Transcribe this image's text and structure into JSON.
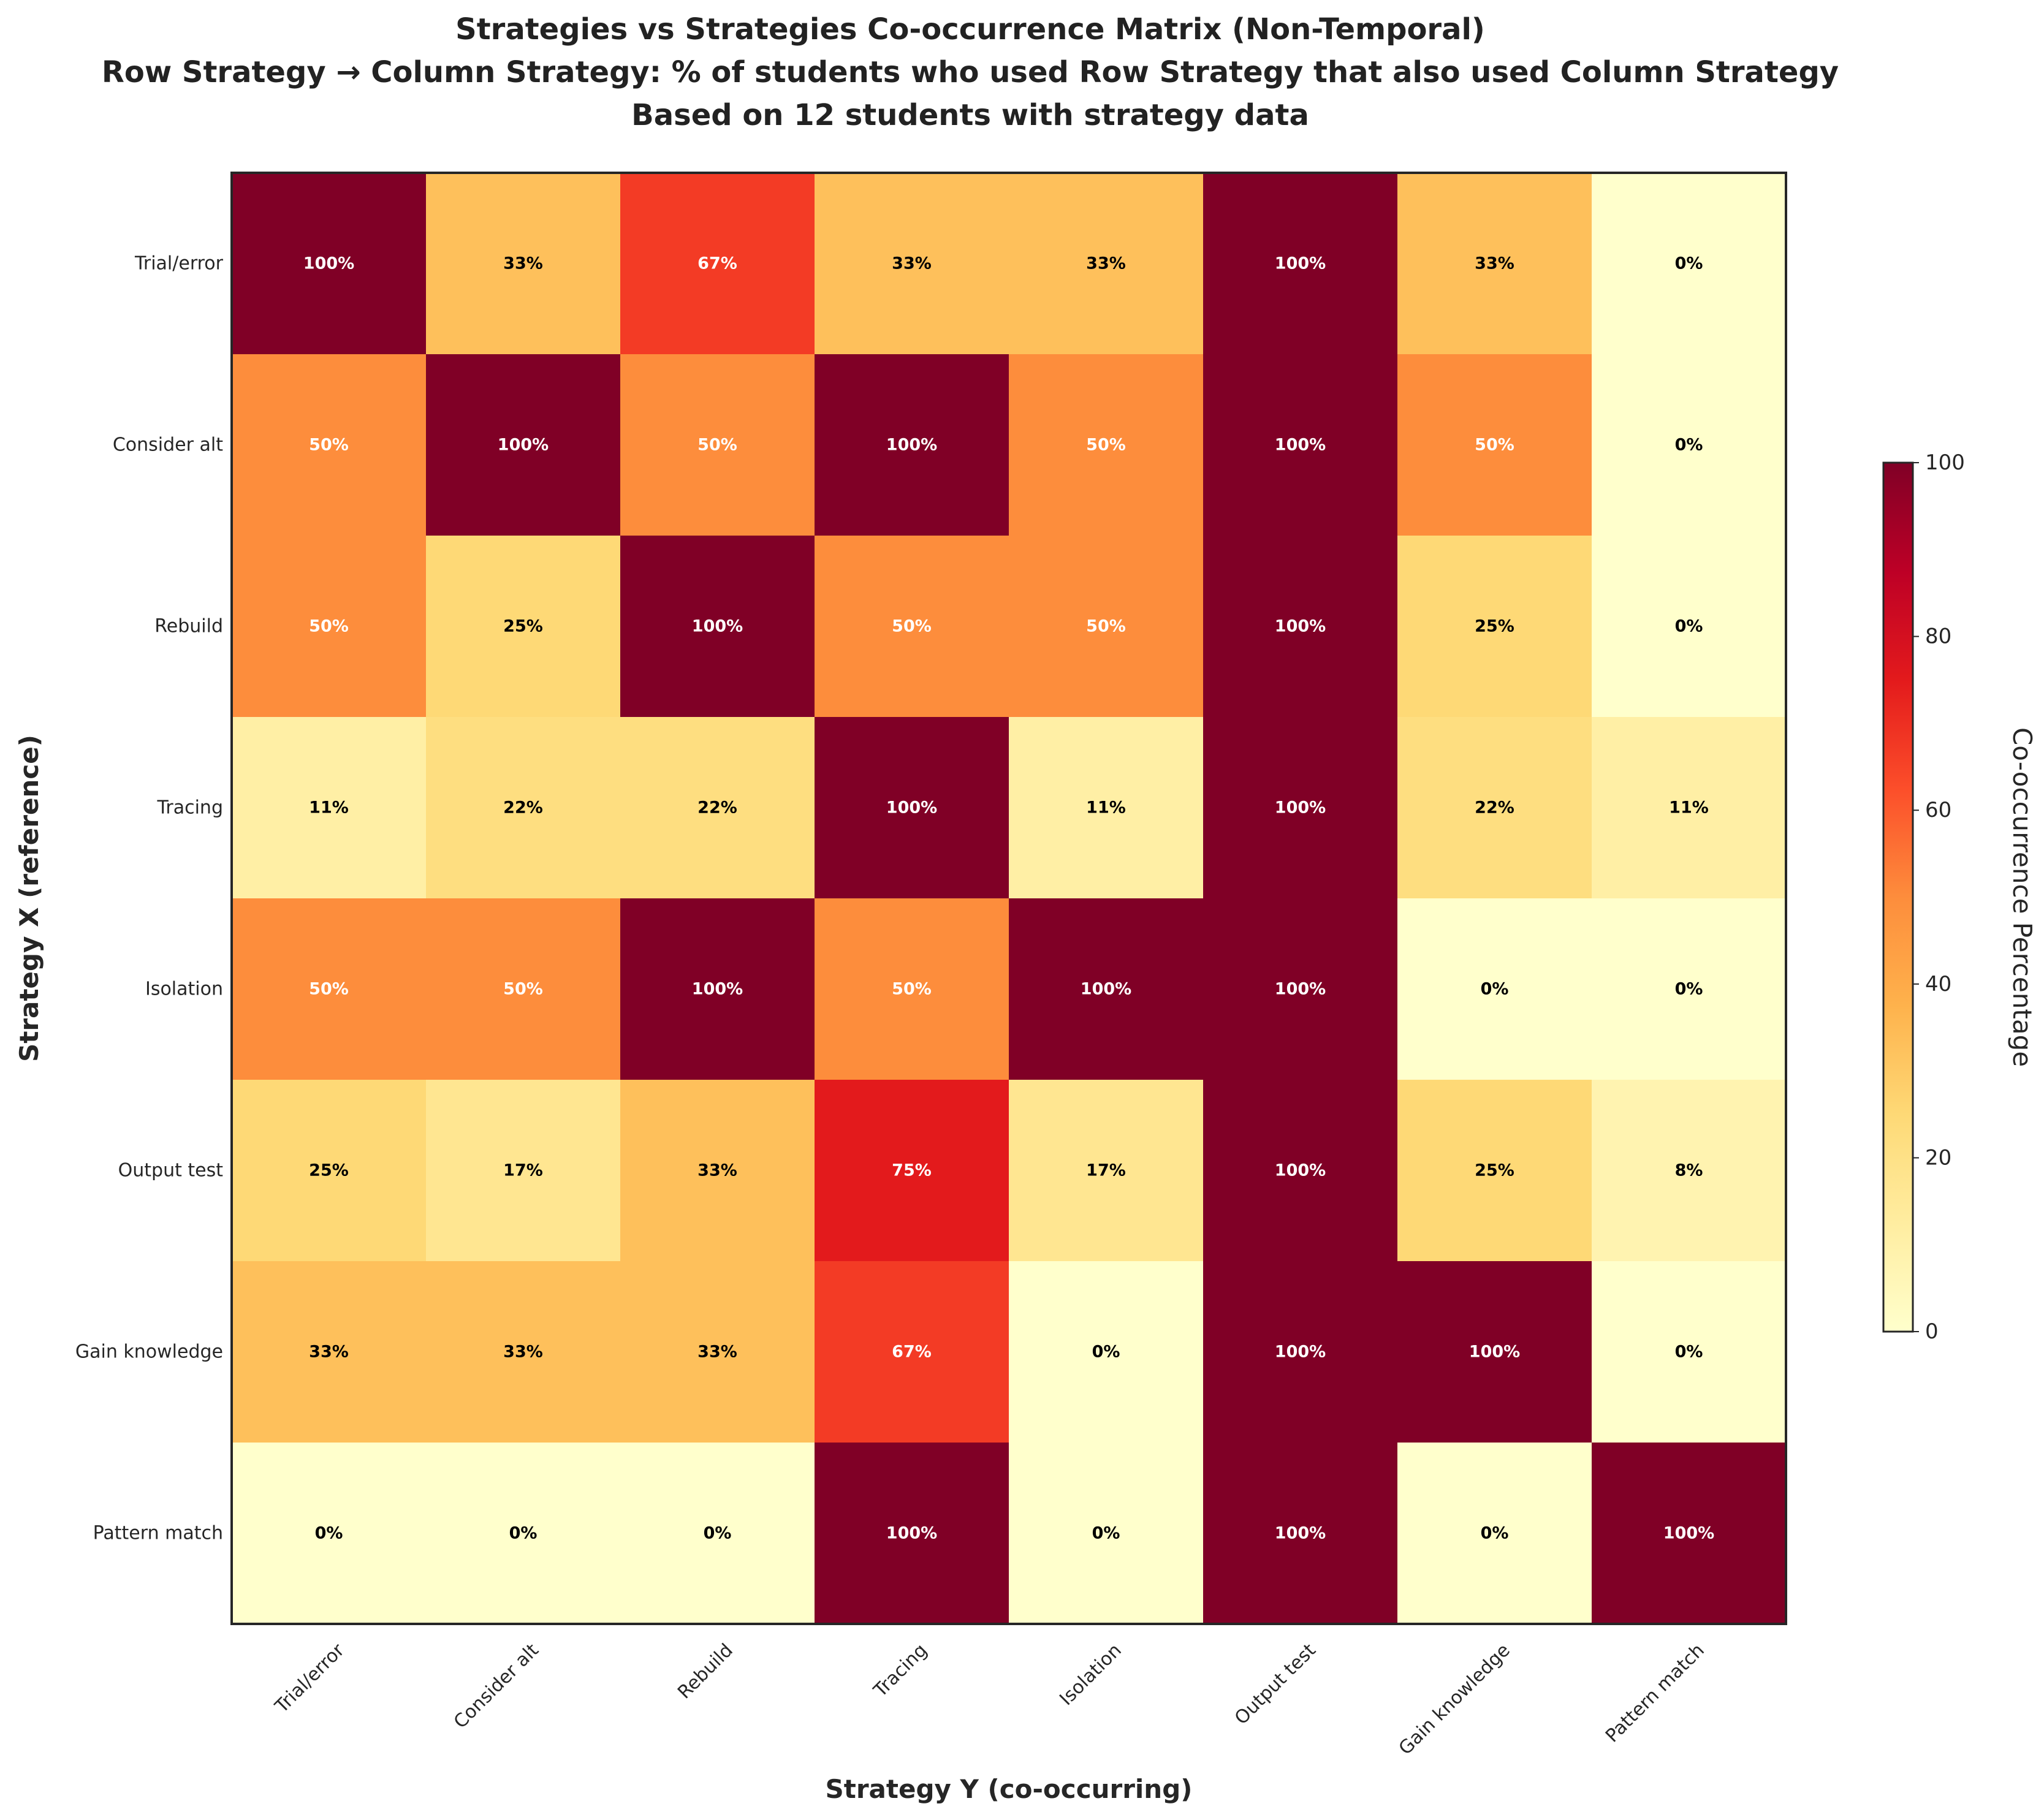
{
  "chart_data": {
    "type": "heatmap",
    "title_lines": [
      "Strategies vs Strategies Co-occurrence Matrix (Non-Temporal)",
      "Row Strategy → Column Strategy: % of students who used Row Strategy that also used Column Strategy",
      "Based on 12 students with strategy data"
    ],
    "xlabel": "Strategy Y (co-occurring)",
    "ylabel": "Strategy X (reference)",
    "rows": [
      "Trial/error",
      "Consider alt",
      "Rebuild",
      "Tracing",
      "Isolation",
      "Output test",
      "Gain knowledge",
      "Pattern match"
    ],
    "columns": [
      "Trial/error",
      "Consider alt",
      "Rebuild",
      "Tracing",
      "Isolation",
      "Output test",
      "Gain knowledge",
      "Pattern match"
    ],
    "values": [
      [
        100,
        33,
        67,
        33,
        33,
        100,
        33,
        0
      ],
      [
        50,
        100,
        50,
        100,
        50,
        100,
        50,
        0
      ],
      [
        50,
        25,
        100,
        50,
        50,
        100,
        25,
        0
      ],
      [
        11,
        22,
        22,
        100,
        11,
        100,
        22,
        11
      ],
      [
        50,
        50,
        100,
        50,
        100,
        100,
        0,
        0
      ],
      [
        25,
        17,
        33,
        75,
        17,
        100,
        25,
        8
      ],
      [
        33,
        33,
        33,
        67,
        0,
        100,
        100,
        0
      ],
      [
        0,
        0,
        0,
        100,
        0,
        100,
        0,
        100
      ]
    ],
    "cell_labels": [
      [
        "100%",
        "33%",
        "67%",
        "33%",
        "33%",
        "100%",
        "33%",
        "0%"
      ],
      [
        "50%",
        "100%",
        "50%",
        "100%",
        "50%",
        "100%",
        "50%",
        "0%"
      ],
      [
        "50%",
        "25%",
        "100%",
        "50%",
        "50%",
        "100%",
        "25%",
        "0%"
      ],
      [
        "11%",
        "22%",
        "22%",
        "100%",
        "11%",
        "100%",
        "22%",
        "11%"
      ],
      [
        "50%",
        "50%",
        "100%",
        "50%",
        "100%",
        "100%",
        "0%",
        "0%"
      ],
      [
        "25%",
        "17%",
        "33%",
        "75%",
        "17%",
        "100%",
        "25%",
        "8%"
      ],
      [
        "33%",
        "33%",
        "33%",
        "67%",
        "0%",
        "100%",
        "100%",
        "0%"
      ],
      [
        "0%",
        "0%",
        "0%",
        "100%",
        "0%",
        "100%",
        "0%",
        "100%"
      ]
    ],
    "colorscale": "YlOrRd",
    "vmin": 0,
    "vmax": 100,
    "colorbar": {
      "title": "Co-occurrence Percentage",
      "ticks": [
        0,
        20,
        40,
        60,
        80,
        100
      ],
      "tick_labels": [
        "0",
        "20",
        "40",
        "60",
        "80",
        "100"
      ]
    },
    "grid": false
  }
}
